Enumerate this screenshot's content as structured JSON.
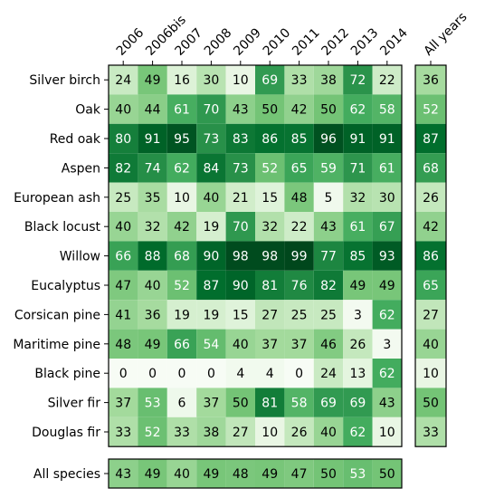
{
  "chart_data": {
    "type": "heatmap",
    "colormap": "Greens",
    "value_range": [
      0,
      100
    ],
    "years": [
      "2006",
      "2006bis",
      "2007",
      "2008",
      "2009",
      "2010",
      "2011",
      "2012",
      "2013",
      "2014"
    ],
    "all_years_label": "All years",
    "species": [
      "Silver birch",
      "Oak",
      "Red oak",
      "Aspen",
      "European ash",
      "Black locust",
      "Willow",
      "Eucalyptus",
      "Corsican pine",
      "Maritime pine",
      "Black pine",
      "Silver fir",
      "Douglas fir"
    ],
    "all_species_label": "All species",
    "values": [
      [
        24,
        49,
        16,
        30,
        10,
        69,
        33,
        38,
        72,
        22
      ],
      [
        40,
        44,
        61,
        70,
        43,
        50,
        42,
        50,
        62,
        58
      ],
      [
        80,
        91,
        95,
        73,
        83,
        86,
        85,
        96,
        91,
        91
      ],
      [
        82,
        74,
        62,
        84,
        73,
        52,
        65,
        59,
        71,
        61
      ],
      [
        25,
        35,
        10,
        40,
        21,
        15,
        48,
        5,
        32,
        30
      ],
      [
        40,
        32,
        42,
        19,
        70,
        32,
        22,
        43,
        61,
        67
      ],
      [
        66,
        88,
        68,
        90,
        98,
        98,
        99,
        77,
        85,
        93
      ],
      [
        47,
        40,
        52,
        87,
        90,
        81,
        76,
        82,
        49,
        49
      ],
      [
        41,
        36,
        19,
        19,
        15,
        27,
        25,
        25,
        3,
        62
      ],
      [
        48,
        49,
        66,
        54,
        40,
        37,
        37,
        46,
        26,
        3
      ],
      [
        0,
        0,
        0,
        0,
        4,
        4,
        0,
        24,
        13,
        62
      ],
      [
        37,
        53,
        6,
        37,
        50,
        81,
        58,
        69,
        69,
        43
      ],
      [
        33,
        52,
        33,
        38,
        27,
        10,
        26,
        40,
        62,
        10
      ]
    ],
    "all_years_values": [
      36,
      52,
      87,
      68,
      26,
      42,
      86,
      65,
      27,
      40,
      10,
      50,
      33
    ],
    "all_species_values": [
      43,
      49,
      40,
      49,
      48,
      49,
      47,
      50,
      53,
      50
    ]
  }
}
